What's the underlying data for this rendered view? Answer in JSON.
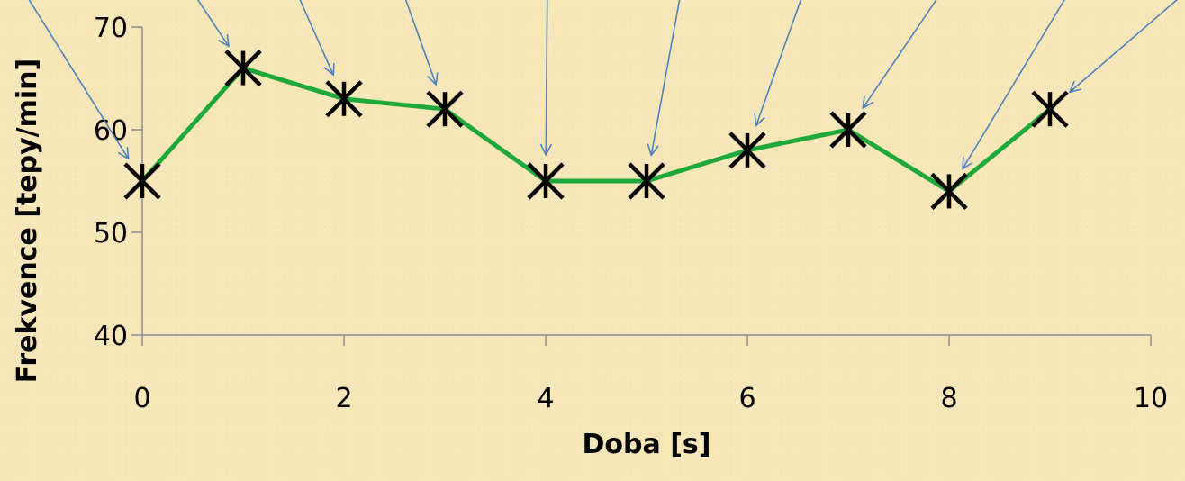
{
  "chart_data": {
    "type": "line",
    "title": "",
    "xlabel": "Doba [s]",
    "ylabel": "Frekvence [tepy/min]",
    "xlim": [
      0,
      10
    ],
    "ylim": [
      40,
      70
    ],
    "x_ticks": [
      0,
      2,
      4,
      6,
      8,
      10
    ],
    "y_ticks": [
      40,
      50,
      60,
      70
    ],
    "x_tick_labels": [
      "0",
      "2",
      "4",
      "6",
      "8",
      "10"
    ],
    "y_tick_labels": [
      "40",
      "50",
      "60",
      "70"
    ],
    "grid": false,
    "legend": "none",
    "series": [
      {
        "x": [
          0,
          1,
          2,
          3,
          4,
          5,
          6,
          7,
          8,
          9
        ],
        "y": [
          55,
          66,
          63,
          62,
          55,
          55,
          58,
          60,
          54,
          62
        ],
        "color": "#1fa83a",
        "marker": "asterisk",
        "marker_color": "#000000"
      }
    ],
    "annotations": {
      "type": "arrows",
      "color": "#4f81bd",
      "targets": [
        0,
        1,
        2,
        3,
        4,
        5,
        6,
        7,
        8,
        9
      ]
    }
  },
  "colors": {
    "background": "#f6e6b8",
    "line": "#1fa83a",
    "marker": "#000000",
    "arrow": "#4f81bd",
    "axis": "#8c8c8c"
  }
}
